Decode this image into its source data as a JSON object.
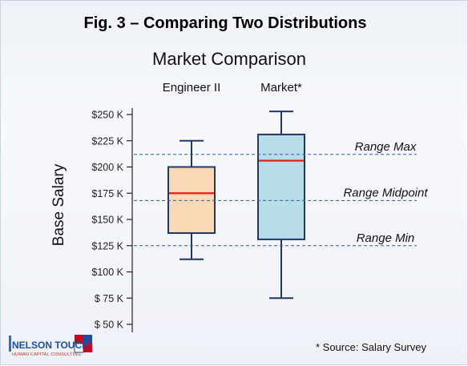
{
  "figure": {
    "title": "Fig. 3 – Comparing Two Distributions",
    "source_note": "* Source: Salary Survey",
    "logo": {
      "name": "NELSON TOUCH",
      "tagline": "HUMAN CAPITAL CONSULTING",
      "colors": {
        "primary": "#1f4e99",
        "accent": "#d0021b"
      }
    }
  },
  "chart_data": {
    "type": "box",
    "title": "Market Comparison",
    "ylabel": "Base Salary",
    "xlabel": "",
    "ylim": [
      50000,
      250000
    ],
    "yticks": [
      50000,
      75000,
      100000,
      125000,
      150000,
      175000,
      200000,
      225000,
      250000
    ],
    "ytick_labels": [
      "$ 50 K",
      "$ 75 K",
      "$100 K",
      "$125 K",
      "$150 K",
      "$175 K",
      "$200 K",
      "$225 K",
      "$250 K"
    ],
    "grid": false,
    "series": [
      {
        "category": "Engineer II",
        "min": 112000,
        "q1": 137000,
        "median": 175000,
        "q3": 200000,
        "max": 225000,
        "fill": "#fcd9b6",
        "stroke": "#1f3864",
        "median_color": "#e0201b"
      },
      {
        "category": "Market*",
        "min": 75000,
        "q1": 131000,
        "median": 206000,
        "q3": 231000,
        "max": 253000,
        "fill": "#b7dde8",
        "stroke": "#1f3864",
        "median_color": "#e0201b"
      }
    ],
    "reference_lines": [
      {
        "label": "Range Max",
        "value": 212000
      },
      {
        "label": "Range Midpoint",
        "value": 168000
      },
      {
        "label": "Range Min",
        "value": 125000
      }
    ],
    "reference_line_color": "#2e5fa7"
  }
}
